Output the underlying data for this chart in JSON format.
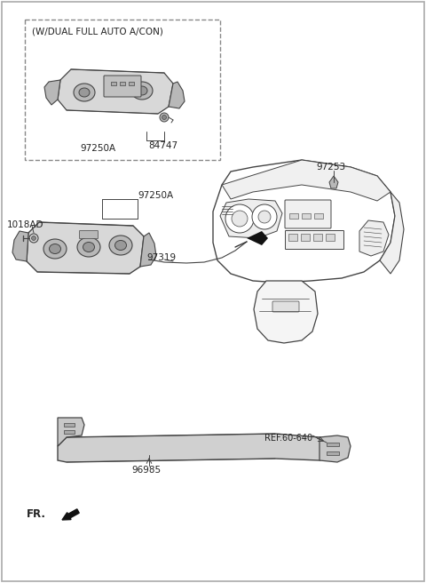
{
  "bg_color": "#ffffff",
  "line_color": "#444444",
  "fill_color": "#d8d8d8",
  "fill_dark": "#b8b8b8",
  "fill_light": "#e8e8e8",
  "labels": {
    "dual_auto": "(W/DUAL FULL AUTO A/CON)",
    "part_84747": "84747",
    "part_97250A_top": "97250A",
    "part_97250A_mid": "97250A",
    "part_97319": "97319",
    "part_1018AD": "1018AD",
    "part_97253": "97253",
    "part_96985": "96985",
    "ref_60_640": "REF.60-640",
    "fr_label": "FR."
  },
  "figsize": [
    4.8,
    6.56
  ],
  "dpi": 100
}
